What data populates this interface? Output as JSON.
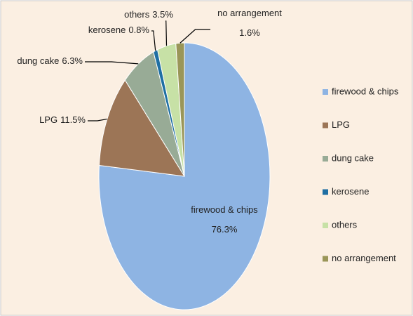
{
  "chart_data": {
    "type": "pie",
    "categories": [
      "firewood & chips",
      "LPG",
      "dung cake",
      "kerosene",
      "others",
      "no arrangement"
    ],
    "values": [
      76.3,
      11.5,
      6.3,
      0.8,
      3.5,
      1.6
    ],
    "value_labels": [
      "76.3%",
      "11.5%",
      "6.3%",
      "0.8%",
      "3.5%",
      "1.6%"
    ],
    "colors": [
      "#8eb4e3",
      "#9c7556",
      "#98ab96",
      "#1f6fa3",
      "#c7e1a6",
      "#9a9658"
    ],
    "legend": "right"
  }
}
